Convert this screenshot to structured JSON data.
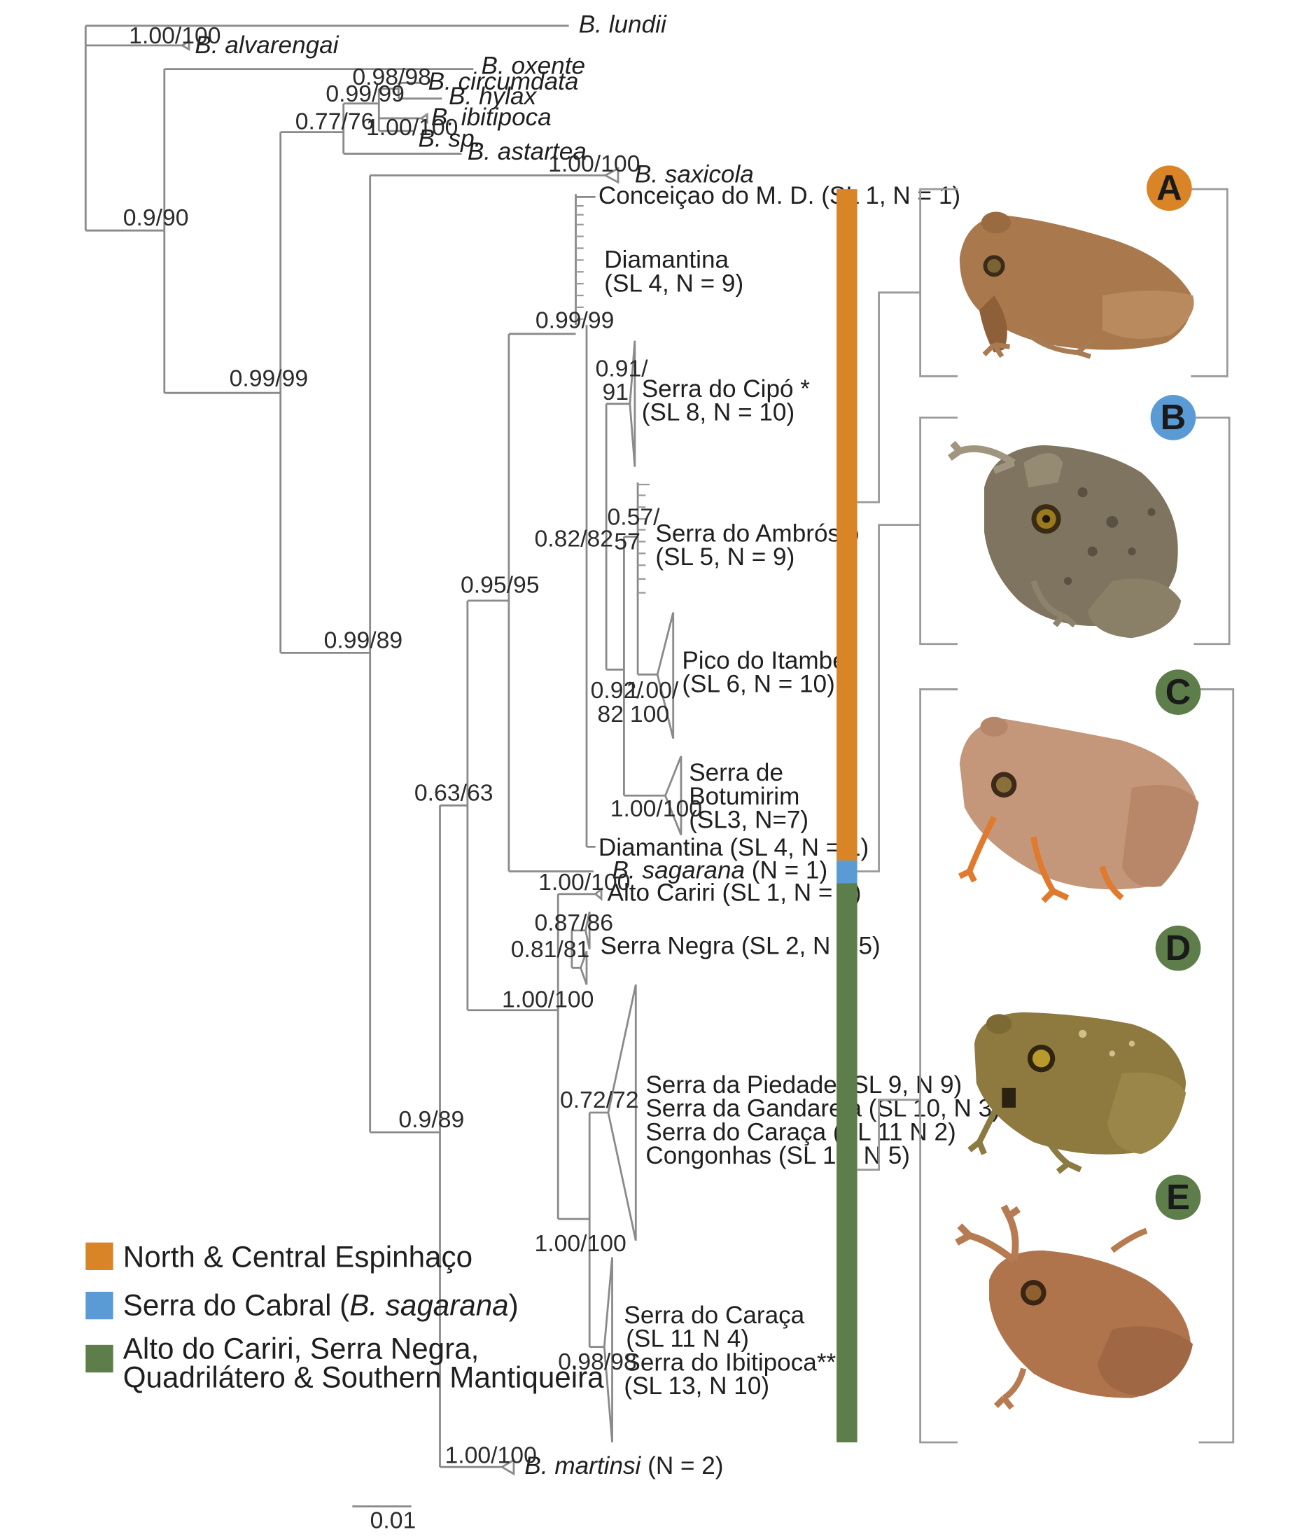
{
  "colors": {
    "orange": "#D88427",
    "blue": "#5B9BD5",
    "green": "#5D7D4A",
    "line": "#8a8a8a"
  },
  "scale_bar": {
    "label": "0.01"
  },
  "outgroup_taxa": {
    "lundii": "B. lundii",
    "alvarengai": "B. alvarengai",
    "oxente": "B. oxente",
    "circumdata": "B. circumdata",
    "hylax": "B. hylax",
    "ibitipoca": "B. ibitipoca",
    "sp": "B. sp.",
    "astartea": "B. astartea",
    "saxicola": "B. saxicola",
    "sagarana_prefix": "B. sagarana",
    "sagarana_suffix": " (N = 1)",
    "martinsi_prefix": "B. martinsi",
    "martinsi_suffix": " (N = 2)"
  },
  "clades": {
    "conceicao": "Conceiçao do M. D. (SL 1, N = 1)",
    "diamantina_a1": "Diamantina",
    "diamantina_a2": "(SL 4, N = 9)",
    "cipo1": "Serra do Cipó *",
    "cipo2": "(SL 8, N = 10)",
    "ambrosio1": "Serra do Ambrósio",
    "ambrosio2": "(SL 5, N = 9)",
    "itambe1": "Pico do Itambé",
    "itambe2": "(SL 6, N = 10)",
    "botumirim1": "Serra de",
    "botumirim2": "Botumirim",
    "botumirim3": "(SL3, N=7)",
    "diamantina_b": "Diamantina (SL 4, N = 1)",
    "alto_cariri": "Alto Cariri (SL 1, N = 2)",
    "serra_negra": "Serra Negra (SL 2, N = 5)",
    "quad1": "Serra da Piedade (SL 9, N 9)",
    "quad2": "Serra da Gandarela (SL 10, N 3)",
    "quad3": "Serra do Caraça (SL 11 N 2)",
    "quad4": "Congonhas (SL 12, N 5)",
    "south1": "Serra do Caraça",
    "south2": "(SL 11 N 4)",
    "south3": "Serra do Ibitipoca**",
    "south4": "(SL 13, N 10)"
  },
  "support": {
    "s_alvarengai": "1.00/100",
    "s_circum": "0.98/98",
    "s_hylax_grp": "0.99/99",
    "s_ibiti": "1.00/100",
    "s_outer": "0.77/76",
    "s_root": "0.9/90",
    "s_saxicola": "1.00/100",
    "s_mid": "0.99/99",
    "s_diam": "0.99/99",
    "s_cipo1": "0.91/",
    "s_cipo2": "91",
    "s_amb1": "0.57/",
    "s_amb2": "57",
    "s_n082": "0.82/82",
    "s_n095": "0.95/95",
    "s_n099_89": "0.99/89",
    "s_n092a": "0.92/",
    "s_n092b": "82",
    "s_ita1": "1.00/",
    "s_ita2": "100",
    "s_botu": "1.00/100",
    "s_n063": "0.63/63",
    "s_cariri": "1.00/100",
    "s_negra1": "0.87/86",
    "s_negra2": "0.81/81",
    "s_green": "1.00/100",
    "s_quad": "0.72/72",
    "s_south_outer": "1.00/100",
    "s_south": "0.98/98",
    "s_n09_89": "0.9/89",
    "s_martinsi": "1.00/100"
  },
  "legend": [
    {
      "label_pre": "North & Central Espinhaço",
      "label_it": "",
      "label_post": ""
    },
    {
      "label_pre": "Serra do Cabral (",
      "label_it": "B. sagarana",
      "label_post": ")"
    },
    {
      "label_pre": "Alto do Cariri, Serra Negra,",
      "label_it": "",
      "label_post": ""
    },
    {
      "label_pre": "Quadrilátero & Southern Mantiqueira",
      "label_it": "",
      "label_post": ""
    }
  ],
  "panels": [
    {
      "letter": "A",
      "color": "#D88427"
    },
    {
      "letter": "B",
      "color": "#5B9BD5"
    },
    {
      "letter": "C",
      "color": "#5D7D4A"
    },
    {
      "letter": "D",
      "color": "#5D7D4A"
    },
    {
      "letter": "E",
      "color": "#5D7D4A"
    }
  ]
}
